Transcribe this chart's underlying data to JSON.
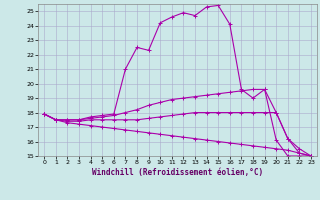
{
  "xlabel": "Windchill (Refroidissement éolien,°C)",
  "bg_color": "#cce8e8",
  "line_color": "#aa00aa",
  "grid_color": "#aaaacc",
  "xlim": [
    -0.5,
    23.5
  ],
  "ylim": [
    15,
    25.5
  ],
  "xticks": [
    0,
    1,
    2,
    3,
    4,
    5,
    6,
    7,
    8,
    9,
    10,
    11,
    12,
    13,
    14,
    15,
    16,
    17,
    18,
    19,
    20,
    21,
    22,
    23
  ],
  "yticks": [
    15,
    16,
    17,
    18,
    19,
    20,
    21,
    22,
    23,
    24,
    25
  ],
  "line1_x": [
    0,
    1,
    2,
    3,
    4,
    5,
    6,
    7,
    8,
    9,
    10,
    11,
    12,
    13,
    14,
    15,
    16,
    17,
    18,
    19,
    20,
    21,
    22,
    23
  ],
  "line1_y": [
    17.9,
    17.5,
    17.5,
    17.5,
    17.7,
    17.8,
    17.9,
    21.0,
    22.5,
    22.3,
    24.2,
    24.6,
    24.9,
    24.7,
    25.3,
    25.4,
    24.1,
    19.6,
    19.0,
    19.6,
    16.1,
    15.0,
    15.0,
    15.0
  ],
  "line2_x": [
    0,
    1,
    2,
    3,
    4,
    5,
    6,
    7,
    8,
    9,
    10,
    11,
    12,
    13,
    14,
    15,
    16,
    17,
    18,
    19,
    20,
    21,
    22,
    23
  ],
  "line2_y": [
    17.9,
    17.5,
    17.5,
    17.5,
    17.6,
    17.7,
    17.8,
    18.0,
    18.2,
    18.5,
    18.7,
    18.9,
    19.0,
    19.1,
    19.2,
    19.3,
    19.4,
    19.5,
    19.6,
    19.6,
    18.0,
    16.2,
    15.2,
    15.0
  ],
  "line3_x": [
    0,
    1,
    2,
    3,
    4,
    5,
    6,
    7,
    8,
    9,
    10,
    11,
    12,
    13,
    14,
    15,
    16,
    17,
    18,
    19,
    20,
    21,
    22,
    23
  ],
  "line3_y": [
    17.9,
    17.5,
    17.4,
    17.4,
    17.5,
    17.5,
    17.5,
    17.5,
    17.5,
    17.6,
    17.7,
    17.8,
    17.9,
    18.0,
    18.0,
    18.0,
    18.0,
    18.0,
    18.0,
    18.0,
    18.0,
    16.2,
    15.5,
    15.0
  ],
  "line4_x": [
    0,
    1,
    2,
    3,
    4,
    5,
    6,
    7,
    8,
    9,
    10,
    11,
    12,
    13,
    14,
    15,
    16,
    17,
    18,
    19,
    20,
    21,
    22,
    23
  ],
  "line4_y": [
    17.9,
    17.5,
    17.3,
    17.2,
    17.1,
    17.0,
    16.9,
    16.8,
    16.7,
    16.6,
    16.5,
    16.4,
    16.3,
    16.2,
    16.1,
    16.0,
    15.9,
    15.8,
    15.7,
    15.6,
    15.5,
    15.4,
    15.2,
    15.0
  ],
  "marker_size": 2.5,
  "linewidth": 0.8
}
